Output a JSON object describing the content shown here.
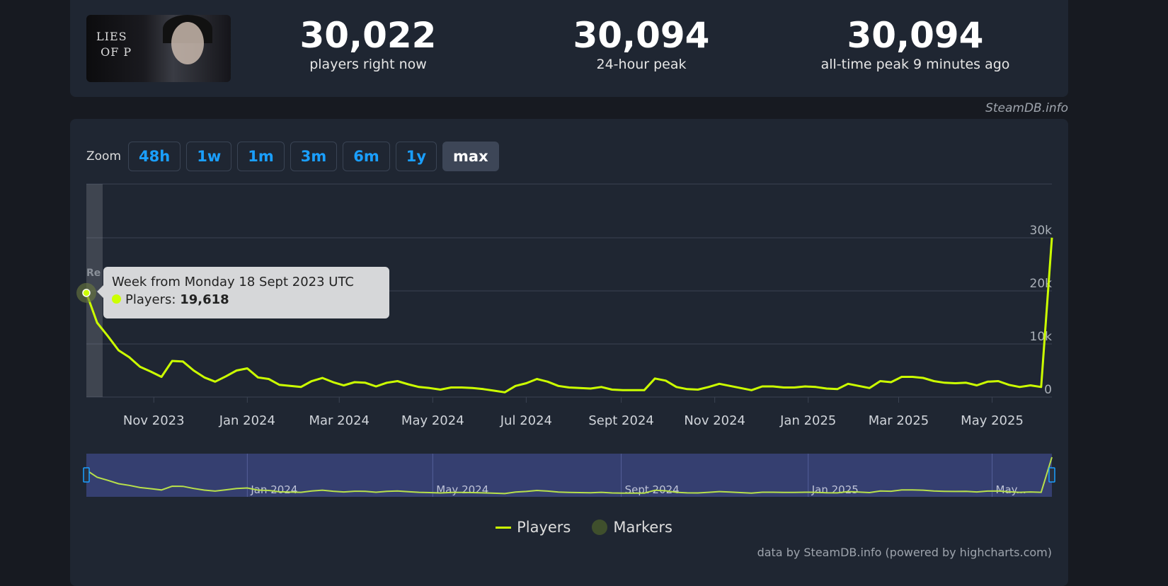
{
  "game": {
    "logo_text": "Lies of P"
  },
  "stats": [
    {
      "value": "30,022",
      "label": "players right now"
    },
    {
      "value": "30,094",
      "label": "24-hour peak"
    },
    {
      "value": "30,094",
      "label": "all-time peak 9 minutes ago"
    }
  ],
  "credit_top": "SteamDB.info",
  "zoom": {
    "label": "Zoom",
    "buttons": [
      "48h",
      "1w",
      "1m",
      "3m",
      "6m",
      "1y",
      "max"
    ],
    "active": "max"
  },
  "tooltip": {
    "title": "Week from Monday 18 Sept 2023 UTC",
    "series": "Players:",
    "value": "19,618"
  },
  "legend": [
    "Players",
    "Markers"
  ],
  "credit_bottom": "data by SteamDB.info (powered by highcharts.com)",
  "colors": {
    "series": "#ccff00",
    "marker": "#3f4f2c",
    "navigator": "#353f70",
    "button": "#1a9fff"
  },
  "chart_data": {
    "type": "line",
    "interval": "weekly",
    "week_start": "2023-09-18",
    "series": [
      {
        "name": "Players",
        "values": [
          19618,
          14000,
          11500,
          8800,
          7500,
          5700,
          4800,
          3800,
          6800,
          6700,
          5000,
          3700,
          2900,
          3900,
          5000,
          5400,
          3700,
          3400,
          2300,
          2100,
          1900,
          3000,
          3600,
          2800,
          2200,
          2800,
          2700,
          2000,
          2700,
          3000,
          2400,
          1900,
          1700,
          1400,
          1800,
          1800,
          1700,
          1500,
          1200,
          900,
          2100,
          2600,
          3400,
          2900,
          2100,
          1800,
          1700,
          1600,
          1900,
          1400,
          1300,
          1300,
          1300,
          3500,
          3100,
          1900,
          1500,
          1400,
          1900,
          2500,
          2100,
          1700,
          1300,
          2000,
          2000,
          1800,
          1800,
          2000,
          1900,
          1600,
          1500,
          2500,
          2100,
          1700,
          3000,
          2800,
          3800,
          3800,
          3600,
          3000,
          2700,
          2600,
          2700,
          2200,
          2900,
          3000,
          2300,
          1900,
          2200,
          1900,
          30022
        ]
      }
    ],
    "ylim": [
      0,
      40000
    ],
    "yticks": [
      {
        "v": 0,
        "label": "0"
      },
      {
        "v": 10000,
        "label": "10k"
      },
      {
        "v": 20000,
        "label": "20k"
      },
      {
        "v": 30000,
        "label": "30k"
      }
    ],
    "xticks": [
      {
        "d": "2023-11-01",
        "label": "Nov 2023"
      },
      {
        "d": "2024-01-01",
        "label": "Jan 2024"
      },
      {
        "d": "2024-03-01",
        "label": "Mar 2024"
      },
      {
        "d": "2024-05-01",
        "label": "May 2024"
      },
      {
        "d": "2024-07-01",
        "label": "Jul 2024"
      },
      {
        "d": "2024-09-01",
        "label": "Sept 2024"
      },
      {
        "d": "2024-11-01",
        "label": "Nov 2024"
      },
      {
        "d": "2025-01-01",
        "label": "Jan 2025"
      },
      {
        "d": "2025-03-01",
        "label": "Mar 2025"
      },
      {
        "d": "2025-05-01",
        "label": "May 2025"
      }
    ],
    "navigator_ticks": [
      {
        "d": "2024-01-01",
        "label": "Jan 2024"
      },
      {
        "d": "2024-05-01",
        "label": "May 2024"
      },
      {
        "d": "2024-09-01",
        "label": "Sept 2024"
      },
      {
        "d": "2025-01-01",
        "label": "Jan 2025"
      },
      {
        "d": "2025-05-01",
        "label": "May..."
      }
    ],
    "grid": true,
    "legend_position": "bottom"
  }
}
